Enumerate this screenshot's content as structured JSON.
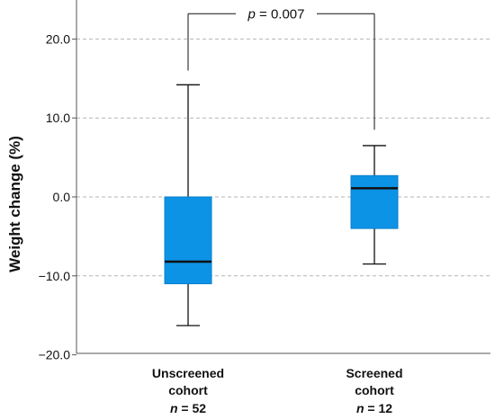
{
  "chart_data": {
    "type": "box",
    "ylabel": "Weight change (%)",
    "ylim": [
      -20,
      24
    ],
    "yticks": [
      -20,
      -10,
      0,
      10,
      20
    ],
    "ytick_labels": [
      "−20.0",
      "−10.0",
      "0.0",
      "10.0",
      "20.0"
    ],
    "grid": "horizontal dashed",
    "box_color": "#0c93e6",
    "median_color": "#111111",
    "groups": [
      {
        "label_lines": [
          "Unscreened",
          "cohort"
        ],
        "n_prefix": "n",
        "n_text": " = 52",
        "whisker_low": -16.3,
        "q1": -11.0,
        "median": -8.2,
        "q3": 0.0,
        "whisker_high": 14.2
      },
      {
        "label_lines": [
          "Screened",
          "cohort"
        ],
        "n_prefix": "n",
        "n_text": " = 12",
        "whisker_low": -8.5,
        "q1": -4.0,
        "median": 1.1,
        "q3": 2.7,
        "whisker_high": 6.5
      }
    ],
    "annotation": {
      "p_symbol": "p",
      "p_text": " = 0.007",
      "bracket_y": 23.2,
      "bracket_left_end": 16.0,
      "bracket_right_end": 8.5
    }
  }
}
